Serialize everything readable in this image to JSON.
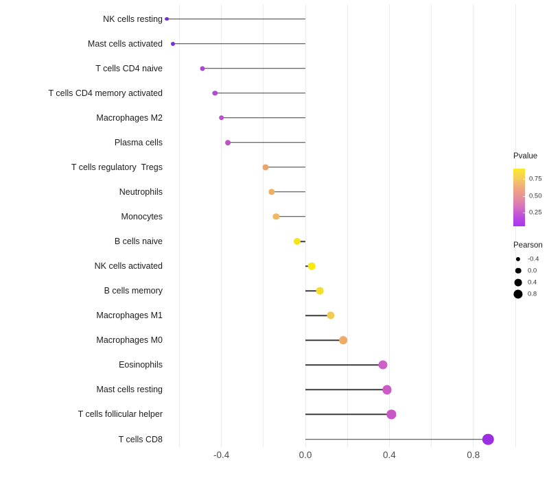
{
  "chart_data": {
    "type": "lollipop",
    "orientation": "horizontal",
    "title": "",
    "xlabel": "",
    "ylabel": "",
    "xlim": [
      -0.7,
      1.0
    ],
    "grid": true,
    "grid_values": [
      -0.6,
      -0.4,
      -0.2,
      0.0,
      0.2,
      0.4,
      0.6,
      0.8,
      1.0
    ],
    "x_ticks": [
      {
        "label": "-0.4",
        "value": -0.4
      },
      {
        "label": "0.0",
        "value": 0.0
      },
      {
        "label": "0.4",
        "value": 0.4
      },
      {
        "label": "0.8",
        "value": 0.8
      }
    ],
    "stem_color": "#3a3a3a",
    "grid_color": "#ececec",
    "rows": [
      {
        "label": "NK cells resting",
        "pearson": -0.66,
        "color": "#7030d2"
      },
      {
        "label": "Mast cells activated",
        "pearson": -0.63,
        "color": "#7b32d4"
      },
      {
        "label": "T cells CD4 naive",
        "pearson": -0.49,
        "color": "#a94bcd"
      },
      {
        "label": "T cells CD4 memory activated",
        "pearson": -0.43,
        "color": "#b04eca"
      },
      {
        "label": "Macrophages M2",
        "pearson": -0.4,
        "color": "#b852c8"
      },
      {
        "label": "Plasma cells",
        "pearson": -0.37,
        "color": "#bd54c6"
      },
      {
        "label": "T cells regulatory  Tregs",
        "pearson": -0.19,
        "color": "#eca566"
      },
      {
        "label": "Neutrophils",
        "pearson": -0.16,
        "color": "#eeaf63"
      },
      {
        "label": "Monocytes",
        "pearson": -0.14,
        "color": "#f0b961"
      },
      {
        "label": "B cells naive",
        "pearson": -0.04,
        "color": "#f5e31c"
      },
      {
        "label": "NK cells activated",
        "pearson": 0.03,
        "color": "#f8ea0a"
      },
      {
        "label": "B cells memory",
        "pearson": 0.07,
        "color": "#f5dd2b"
      },
      {
        "label": "Macrophages M1",
        "pearson": 0.12,
        "color": "#f2cb52"
      },
      {
        "label": "Macrophages M0",
        "pearson": 0.18,
        "color": "#efac68"
      },
      {
        "label": "Eosinophils",
        "pearson": 0.37,
        "color": "#cd60c6"
      },
      {
        "label": "Mast cells resting",
        "pearson": 0.39,
        "color": "#ca5bc5"
      },
      {
        "label": "T cells follicular helper",
        "pearson": 0.41,
        "color": "#c858c6"
      },
      {
        "label": "T cells CD8",
        "pearson": 0.87,
        "color": "#9c2ee2"
      }
    ],
    "legend": {
      "pvalue": {
        "title": "Pvalue",
        "ticks": [
          {
            "label": "0.75",
            "value": 0.75
          },
          {
            "label": "0.50",
            "value": 0.5
          },
          {
            "label": "0.25",
            "value": 0.25
          }
        ],
        "bar_range": [
          0.05,
          0.9
        ],
        "gradient": [
          "#fbe92b",
          "#f6cd5c",
          "#f0a87e",
          "#e68f9c",
          "#d671be",
          "#bc4cdc",
          "#a637f2"
        ]
      },
      "pearson": {
        "title": "Pearson",
        "ticks": [
          {
            "label": "-0.4",
            "value": -0.4
          },
          {
            "label": "0.0",
            "value": 0.0
          },
          {
            "label": "0.4",
            "value": 0.4
          },
          {
            "label": "0.8",
            "value": 0.8
          }
        ],
        "dot_color": "#000000"
      }
    }
  }
}
